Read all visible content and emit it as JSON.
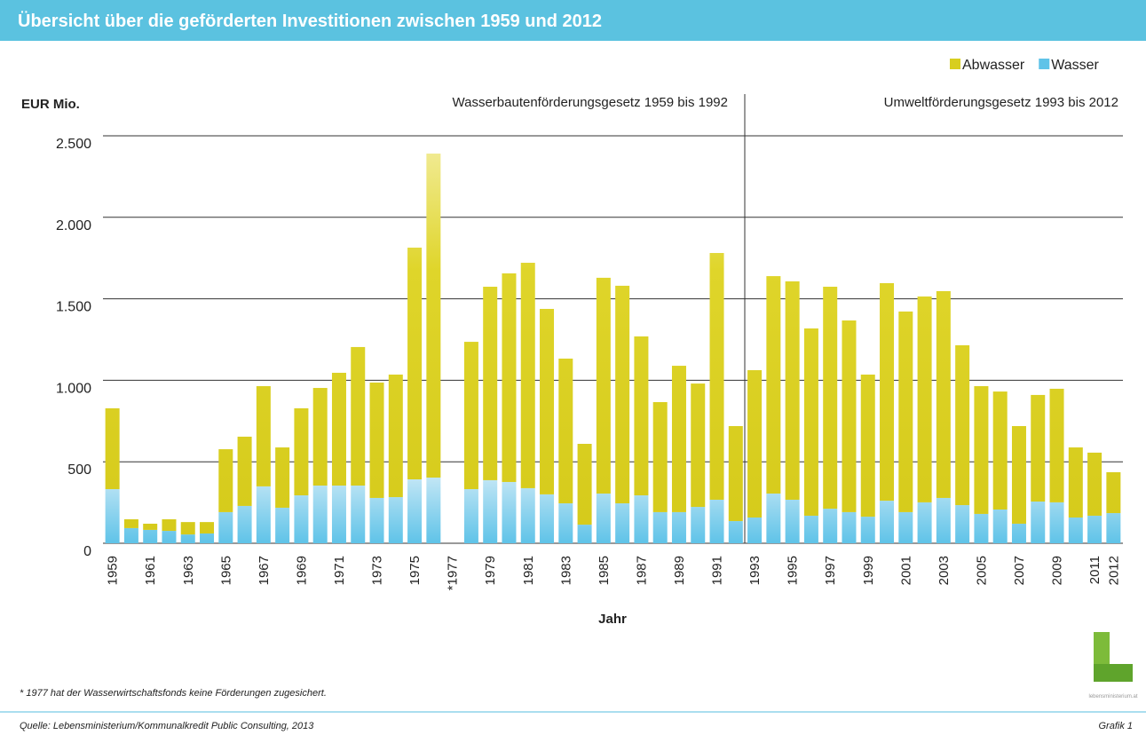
{
  "header": {
    "title": "Übersicht über die geförderten Investitionen zwischen 1959 und 2012"
  },
  "chart_data": {
    "type": "stacked_bar",
    "y_label": "EUR Mio.",
    "x_label": "Jahr",
    "annotations": [
      "Wasserbautenförderungsgesetz 1959 bis 1992",
      "Umweltförderungsgesetz 1993 bis 2012"
    ],
    "categories": [
      "1959",
      null,
      "1961",
      null,
      "1963",
      null,
      "1965",
      null,
      "1967",
      null,
      "1969",
      null,
      "1971",
      null,
      "1973",
      null,
      "1975",
      null,
      "*1977",
      null,
      "1979",
      null,
      "1981",
      null,
      "1983",
      null,
      "1985",
      null,
      "1987",
      null,
      "1989",
      null,
      "1991",
      null,
      "1993",
      null,
      "1995",
      null,
      "1997",
      null,
      "1999",
      null,
      "2001",
      null,
      "2003",
      null,
      "2005",
      null,
      "2007",
      null,
      "2009",
      null,
      "2011",
      "2012"
    ],
    "series": [
      {
        "name": "Abwasser",
        "color": "#d8ce1f",
        "values": [
          496,
          54,
          38,
          71,
          76,
          70,
          386,
          425,
          615,
          370,
          534,
          599,
          692,
          850,
          708,
          752,
          1422,
          1988,
          0,
          904,
          1187,
          1280,
          1383,
          1138,
          888,
          496,
          1324,
          1335,
          975,
          675,
          898,
          757,
          1514,
          583,
          904,
          1334,
          1340,
          1149,
          1362,
          1176,
          872,
          1335,
          1231,
          1263,
          1269,
          981,
          784,
          724,
          599,
          654,
          697,
          430,
          387,
          251
        ]
      },
      {
        "name": "Wasser",
        "color": "#5fc3e8",
        "values": [
          332,
          93,
          82,
          76,
          54,
          60,
          191,
          229,
          349,
          218,
          294,
          354,
          354,
          354,
          278,
          283,
          392,
          403,
          0,
          332,
          387,
          376,
          338,
          300,
          245,
          114,
          305,
          245,
          294,
          191,
          191,
          223,
          267,
          136,
          158,
          305,
          267,
          169,
          212,
          191,
          163,
          261,
          191,
          251,
          278,
          234,
          180,
          207,
          120,
          256,
          251,
          158,
          169,
          185
        ]
      }
    ],
    "ylim": [
      0,
      2500
    ],
    "yticks": [
      0,
      500,
      {
        "value": 1000,
        "label": "1.000"
      },
      {
        "value": 1500,
        "label": "1.500"
      },
      {
        "value": 2000,
        "label": "2.000"
      },
      {
        "value": 2500,
        "label": "2.500"
      }
    ],
    "grid": true,
    "legend": "top-right"
  },
  "footnote": "* 1977 hat der Wasserwirtschaftsfonds keine Förderungen zugesichert.",
  "source": "Quelle: Lebensministerium/Kommunalkredit Public Consulting, 2013",
  "figure_label": "Grafik 1",
  "logo_text": "lebensministerium.at"
}
